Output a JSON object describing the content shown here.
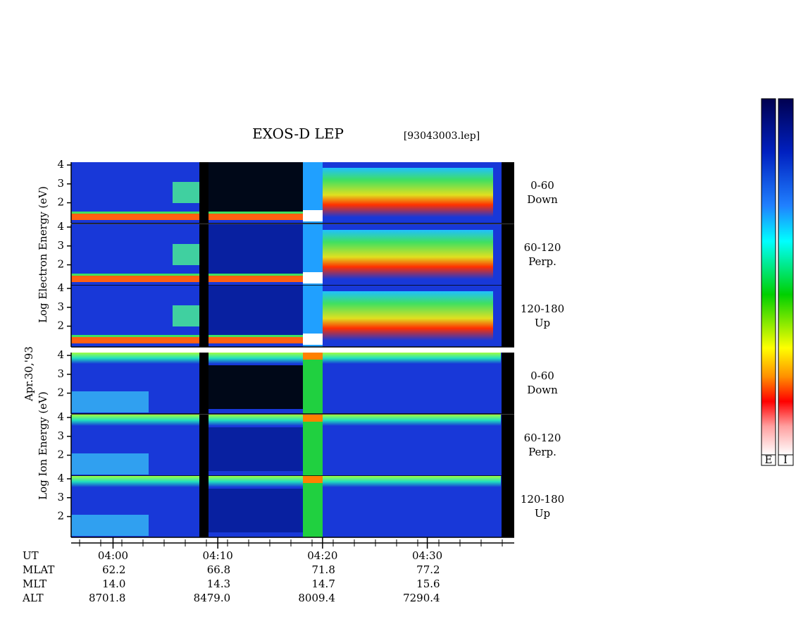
{
  "title": "EXOS-D LEP",
  "file": "[93043003.lep]",
  "date": "Apr.30,'93",
  "electron_label": "Log  Electron  Energy (eV)",
  "ion_label": "Log  Ion  Energy (eV)",
  "channels": [
    {
      "range": "0-60",
      "dir": "Down"
    },
    {
      "range": "60-120",
      "dir": "Perp."
    },
    {
      "range": "120-180",
      "dir": "Up"
    }
  ],
  "ylim": [
    0.9,
    4.15
  ],
  "yticks": [
    2,
    3,
    4
  ],
  "xlim": [
    -4,
    38.3
  ],
  "xticks": [
    {
      "value": 0,
      "label": "04:00"
    },
    {
      "value": 10,
      "label": "04:10"
    },
    {
      "value": 20,
      "label": "04:20"
    },
    {
      "value": 30,
      "label": "04:30"
    }
  ],
  "ephemeris": {
    "time_label": "UT",
    "rows": [
      {
        "label": "MLAT",
        "values": [
          "62.2",
          "66.8",
          "71.8",
          "77.2"
        ]
      },
      {
        "label": "MLT",
        "values": [
          "14.0",
          "14.3",
          "14.7",
          "15.6"
        ]
      },
      {
        "label": "ALT",
        "values": [
          "8701.8",
          "8479.0",
          "8009.4",
          "7290.4"
        ]
      }
    ]
  },
  "colorbar": {
    "labels": [
      "E",
      "I"
    ]
  }
}
